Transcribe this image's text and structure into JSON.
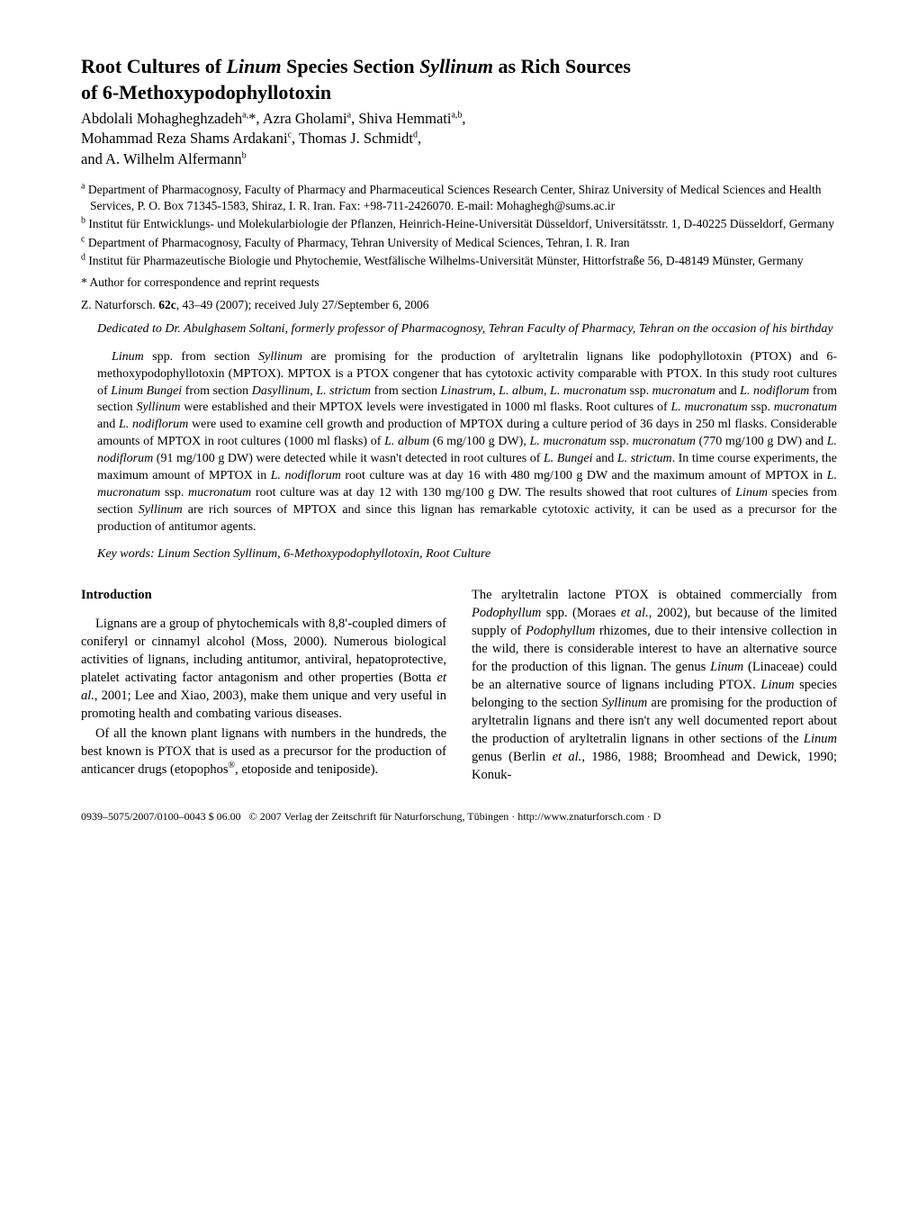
{
  "title_line1": "Root Cultures of Linum Species Section Syllinum as Rich Sources",
  "title_line2": "of 6-Methoxypodophyllotoxin",
  "authors_html": "Abdolali Mohagheghzadeh<sup>a,</sup>*, Azra Gholami<sup>a</sup>, Shiva Hemmati<sup>a,b</sup>,<br>Mohammad Reza Shams Ardakani<sup>c</sup>, Thomas J. Schmidt<sup>d</sup>,<br>and A. Wilhelm Alfermann<sup>b</sup>",
  "affil_a": "<sup>a</sup> Department of Pharmacognosy, Faculty of Pharmacy and Pharmaceutical Sciences Research Center, Shiraz University of Medical Sciences and Health Services, P. O. Box 71345-1583, Shiraz, I. R. Iran. Fax: +98-711-2426070. E-mail: Mohaghegh@sums.ac.ir",
  "affil_b": "<sup>b</sup> Institut für Entwicklungs- und Molekularbiologie der Pflanzen, Heinrich-Heine-Universität Düsseldorf, Universitätsstr. 1, D-40225 Düsseldorf, Germany",
  "affil_c": "<sup>c</sup> Department of Pharmacognosy, Faculty of Pharmacy, Tehran University of Medical Sciences, Tehran, I. R. Iran",
  "affil_d": "<sup>d</sup> Institut für Pharmazeutische Biologie und Phytochemie, Westfälische Wilhelms-Universität Münster, Hittorfstraße 56, D-48149 Münster, Germany",
  "corresp": "* Author for correspondence and reprint requests",
  "journal": "Z. Naturforsch. <b>62c</b>, 43–49 (2007); received July 27/September 6, 2006",
  "dedication": "Dedicated to Dr. Abulghasem Soltani, formerly professor of Pharmacognosy, Tehran Faculty of Pharmacy, Tehran on the occasion of his birthday",
  "abstract": "<em>Linum</em> spp. from section <em>Syllinum</em> are promising for the production of aryltetralin lignans like podophyllotoxin (PTOX) and 6-methoxypodophyllotoxin (MPTOX). MPTOX is a PTOX congener that has cytotoxic activity comparable with PTOX. In this study root cultures of <em>Linum Bungei</em> from section <em>Dasyllinum</em>, <em>L. strictum</em> from section <em>Linastrum</em>, <em>L. album</em>, <em>L. mucronatum</em> ssp. <em>mucronatum</em> and <em>L. nodiflorum</em> from section <em>Syllinum</em> were established and their MPTOX levels were investigated in 1000 ml flasks. Root cultures of <em>L. mucronatum</em> ssp. <em>mucronatum</em> and <em>L. nodiflorum</em> were used to examine cell growth and production of MPTOX during a culture period of 36 days in 250 ml flasks. Considerable amounts of MPTOX in root cultures (1000 ml flasks) of <em>L. album</em> (6 mg/100 g DW), <em>L. mucronatum</em> ssp. <em>mucronatum</em> (770 mg/100 g DW) and <em>L. nodiflorum</em> (91 mg/100 g DW) were detected while it wasn't detected in root cultures of <em>L. Bungei</em> and <em>L. strictum</em>. In time course experiments, the maximum amount of MPTOX in <em>L. nodiflorum</em> root culture was at day 16 with 480 mg/100 g DW and the maximum amount of MPTOX in <em>L. mucronatum</em> ssp. <em>mucronatum</em> root culture was at day 12 with 130 mg/100 g DW. The results showed that root cultures of <em>Linum</em> species from section <em>Syllinum</em> are rich sources of MPTOX and since this lignan has remarkable cytotoxic activity, it can be used as a precursor for the production of antitumor agents.",
  "keywords": "<em>Key words: Linum</em> Section <em>Syllinum</em>, 6-Methoxypodophyllotoxin, Root Culture",
  "intro_heading": "Introduction",
  "intro_p1": "Lignans are a group of phytochemicals with 8,8′-coupled dimers of coniferyl or cinnamyl alcohol (Moss, 2000). Numerous biological activities of lignans, including antitumor, antiviral, hepatoprotective, platelet activating factor antagonism and other properties (Botta <em>et al.</em>, 2001; Lee and Xiao, 2003), make them unique and very useful in promoting health and combating various diseases.",
  "intro_p2": "Of all the known plant lignans with numbers in the hundreds, the best known is PTOX that is used as a precursor for the production of anticancer drugs (etopophos<sup>®</sup>, etoposide and teniposide).",
  "col2_p1": "The aryltetralin lactone PTOX is obtained commercially from <em>Podophyllum</em> spp. (Moraes <em>et al.</em>, 2002), but because of the limited supply of <em>Podophyllum</em> rhizomes, due to their intensive collection in the wild, there is considerable interest to have an alternative source for the production of this lignan. The genus <em>Linum</em> (Linaceae) could be an alternative source of lignans including PTOX. <em>Linum</em> species belonging to the section <em>Syllinum</em> are promising for the production of aryltetralin lignans and there isn't any well documented report about the production of aryltetralin lignans in other sections of the <em>Linum</em> genus (Berlin <em>et al.</em>, 1986, 1988; Broomhead and Dewick, 1990; Konuk-",
  "footer": "0939–5075/2007/0100–0043 $ 06.00 &nbsp; © 2007 Verlag der Zeitschrift für Naturforschung, Tübingen · http://www.znaturforsch.com · D"
}
